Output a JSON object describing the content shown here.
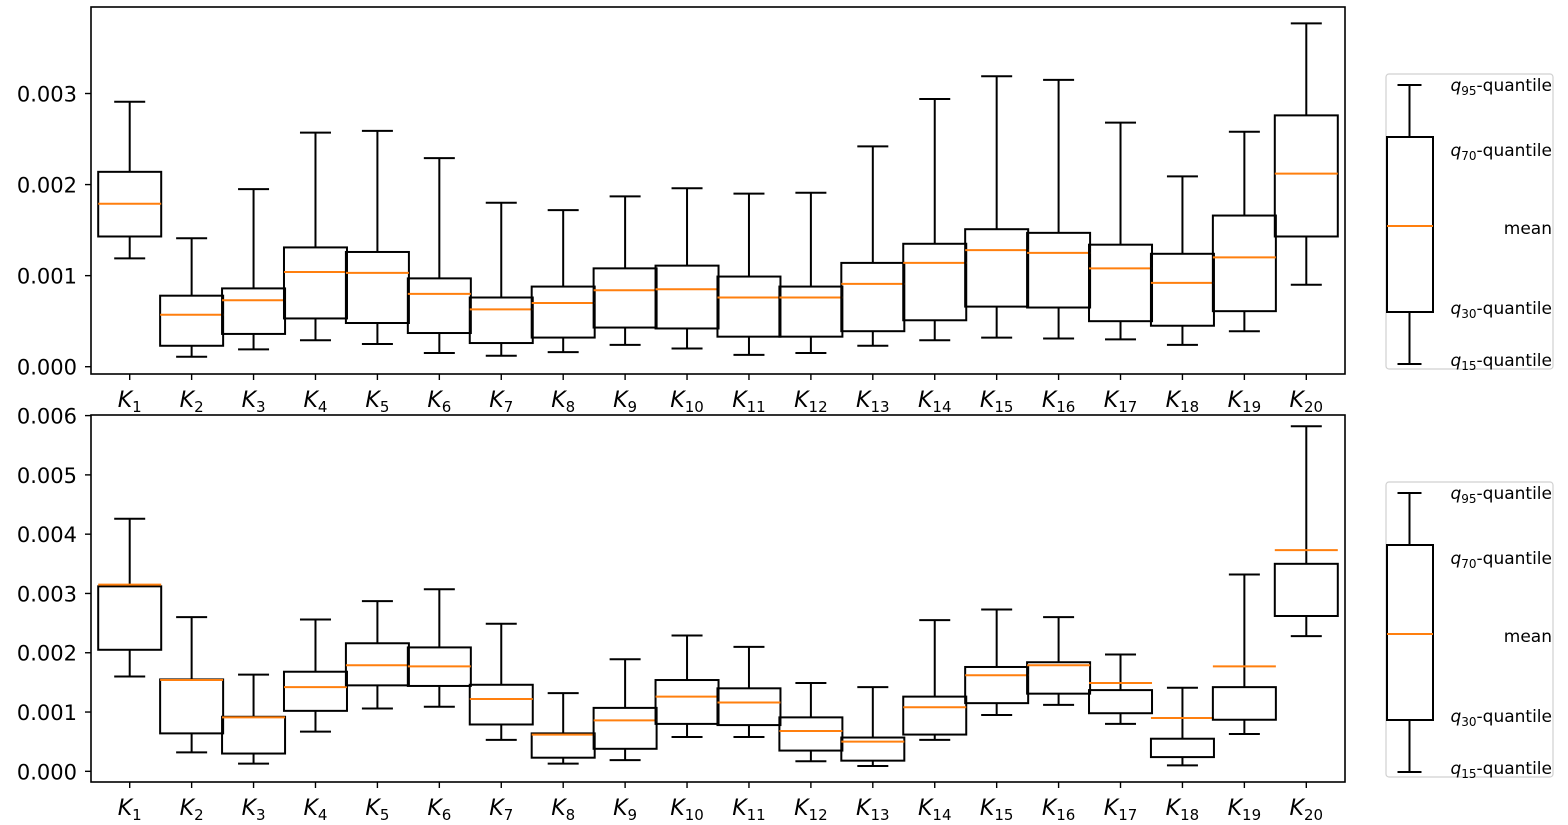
{
  "chart_data": [
    {
      "type": "boxplot",
      "categories": [
        "K_1",
        "K_2",
        "K_3",
        "K_4",
        "K_5",
        "K_6",
        "K_7",
        "K_8",
        "K_9",
        "K_10",
        "K_11",
        "K_12",
        "K_13",
        "K_14",
        "K_15",
        "K_16",
        "K_17",
        "K_18",
        "K_19",
        "K_20"
      ],
      "yticks": [
        "0.000",
        "0.001",
        "0.002",
        "0.003"
      ],
      "ylim": [
        -8e-05,
        0.00395
      ],
      "colors": {
        "box": "#000000",
        "mean": "#ff7f0e"
      },
      "q15": [
        0.00119,
        0.00011,
        0.00019,
        0.00029,
        0.00025,
        0.00015,
        0.00012,
        0.00016,
        0.00024,
        0.0002,
        0.00013,
        0.00015,
        0.00023,
        0.00029,
        0.00032,
        0.00031,
        0.0003,
        0.00024,
        0.00039,
        0.0009
      ],
      "q30": [
        0.00143,
        0.00023,
        0.00036,
        0.00053,
        0.00048,
        0.00037,
        0.00026,
        0.00032,
        0.00043,
        0.00042,
        0.00033,
        0.00033,
        0.00039,
        0.00051,
        0.00066,
        0.00065,
        0.0005,
        0.00045,
        0.00061,
        0.00143
      ],
      "mean": [
        0.00179,
        0.00057,
        0.00073,
        0.00104,
        0.00103,
        0.0008,
        0.00063,
        0.0007,
        0.00084,
        0.00085,
        0.00076,
        0.00076,
        0.00091,
        0.00114,
        0.00128,
        0.00125,
        0.00108,
        0.00092,
        0.0012,
        0.00212
      ],
      "q70": [
        0.00214,
        0.00078,
        0.00086,
        0.00131,
        0.00126,
        0.00097,
        0.00076,
        0.00088,
        0.00108,
        0.00111,
        0.00099,
        0.00088,
        0.00114,
        0.00135,
        0.00151,
        0.00147,
        0.00134,
        0.00124,
        0.00166,
        0.00276
      ],
      "q95": [
        0.00291,
        0.00141,
        0.00195,
        0.00257,
        0.00259,
        0.00229,
        0.0018,
        0.00172,
        0.00187,
        0.00196,
        0.0019,
        0.00191,
        0.00242,
        0.00294,
        0.00319,
        0.00315,
        0.00268,
        0.00209,
        0.00258,
        0.00377
      ]
    },
    {
      "type": "boxplot",
      "categories": [
        "K_1",
        "K_2",
        "K_3",
        "K_4",
        "K_5",
        "K_6",
        "K_7",
        "K_8",
        "K_9",
        "K_10",
        "K_11",
        "K_12",
        "K_13",
        "K_14",
        "K_15",
        "K_16",
        "K_17",
        "K_18",
        "K_19",
        "K_20"
      ],
      "yticks": [
        "0.000",
        "0.001",
        "0.002",
        "0.003",
        "0.004",
        "0.005",
        "0.006"
      ],
      "ylim": [
        -0.00018,
        0.00601
      ],
      "colors": {
        "box": "#000000",
        "mean": "#ff7f0e"
      },
      "q15": [
        0.0016,
        0.00032,
        0.00013,
        0.00067,
        0.00106,
        0.00109,
        0.00053,
        0.00013,
        0.00019,
        0.00058,
        0.00058,
        0.00017,
        9e-05,
        0.00053,
        0.00095,
        0.00112,
        0.0008,
        0.0001,
        0.00063,
        0.00228
      ],
      "q30": [
        0.00205,
        0.00064,
        0.0003,
        0.00102,
        0.00145,
        0.00144,
        0.00079,
        0.00023,
        0.00038,
        0.0008,
        0.00078,
        0.00035,
        0.00018,
        0.00062,
        0.00115,
        0.00131,
        0.00098,
        0.00024,
        0.00087,
        0.00262
      ],
      "mean": [
        0.00315,
        0.00154,
        0.00091,
        0.00142,
        0.00179,
        0.00177,
        0.00122,
        0.00062,
        0.00086,
        0.00126,
        0.00116,
        0.00068,
        0.0005,
        0.00108,
        0.00162,
        0.00179,
        0.00149,
        0.0009,
        0.00177,
        0.00373
      ],
      "q70": [
        0.00312,
        0.00155,
        0.00092,
        0.00168,
        0.00216,
        0.00209,
        0.00146,
        0.00064,
        0.00107,
        0.00154,
        0.0014,
        0.00091,
        0.00057,
        0.00126,
        0.00176,
        0.00184,
        0.00137,
        0.00055,
        0.00142,
        0.0035
      ],
      "q95": [
        0.00426,
        0.0026,
        0.00163,
        0.00256,
        0.00287,
        0.00307,
        0.00249,
        0.00132,
        0.00189,
        0.00229,
        0.0021,
        0.00149,
        0.00142,
        0.00255,
        0.00273,
        0.0026,
        0.00197,
        0.00141,
        0.00332,
        0.00582
      ]
    }
  ],
  "legend": {
    "q95": "-quantile",
    "q70": "-quantile",
    "mean": "mean",
    "q30": "-quantile",
    "q15": "-quantile",
    "q95_sub": "95",
    "q70_sub": "70",
    "q30_sub": "30",
    "q15_sub": "15",
    "q_symbol": "q"
  }
}
